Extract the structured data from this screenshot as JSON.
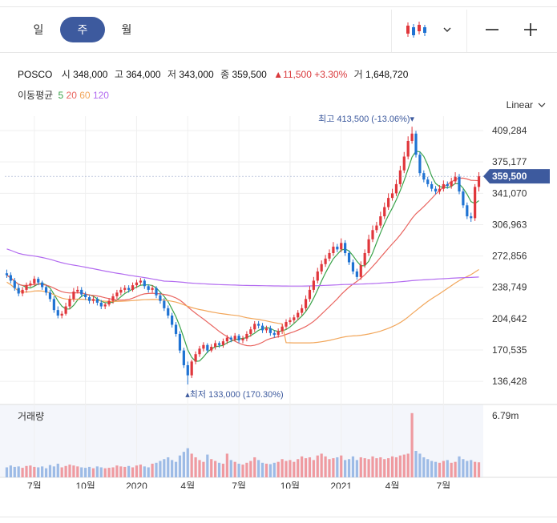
{
  "tabs": [
    {
      "label": "일",
      "active": false
    },
    {
      "label": "주",
      "active": true
    },
    {
      "label": "월",
      "active": false
    }
  ],
  "controls": {
    "chart_type_icon": "candlestick-icon",
    "dropdown_icon": "chevron-down-icon",
    "zoom_out_icon": "minus-icon",
    "zoom_in_icon": "plus-icon"
  },
  "summary": {
    "name": "POSCO",
    "open_label": "시",
    "open": "348,000",
    "high_label": "고",
    "high": "364,000",
    "low_label": "저",
    "low": "343,000",
    "close_label": "종",
    "close": "359,500",
    "change": "11,500",
    "change_pct": "+3.30%",
    "volume_label": "거",
    "volume": "1,648,720"
  },
  "moving_average": {
    "label": "이동평균",
    "periods": [
      {
        "label": "5",
        "color": "#3aa34a"
      },
      {
        "label": "20",
        "color": "#e9645f"
      },
      {
        "label": "60",
        "color": "#f2a65a"
      },
      {
        "label": "120",
        "color": "#b36cf0"
      }
    ]
  },
  "scale_mode": "Linear",
  "colors": {
    "up": "#e0363b",
    "down": "#1f73d3",
    "accent": "#3d5a9e",
    "volume_up": "#ef9aa0",
    "volume_down": "#9dbbe6"
  },
  "chart_data": {
    "type": "candlestick",
    "ylim": [
      120000,
      425000
    ],
    "y_ticks": [
      "409,284",
      "375,177",
      "341,070",
      "306,963",
      "272,856",
      "238,749",
      "204,642",
      "170,535",
      "136,428"
    ],
    "y_tick_values": [
      409284,
      375177,
      341070,
      306963,
      272856,
      238749,
      204642,
      170535,
      136428
    ],
    "x_ticks": [
      "7월",
      "10월",
      "2020",
      "4월",
      "7월",
      "10월",
      "2021",
      "4월",
      "7월"
    ],
    "x_tick_index": [
      7,
      20,
      33,
      46,
      59,
      72,
      85,
      98,
      111
    ],
    "last_price_label": "359,500",
    "last_price": 359500,
    "max_annotation": {
      "label": "최고",
      "value": "413,500",
      "pct": "(-13.06%)",
      "index": 103,
      "price": 413500
    },
    "min_annotation": {
      "label": "최저",
      "value": "133,000",
      "pct": "(170.30%)",
      "index": 46,
      "price": 133000
    },
    "volume_label": "거래량",
    "volume_tick": "6.79m",
    "volume_tick_value": 6790000,
    "volume_max": 8000000,
    "close": [
      252000,
      246000,
      238000,
      232000,
      236000,
      241000,
      243000,
      248000,
      244000,
      239000,
      233000,
      226000,
      214000,
      208000,
      210000,
      218000,
      226000,
      234000,
      236000,
      231000,
      228000,
      224000,
      226000,
      222000,
      218000,
      220000,
      224000,
      229000,
      233000,
      236000,
      238000,
      236000,
      241000,
      244000,
      246000,
      240000,
      236000,
      238000,
      230000,
      224000,
      216000,
      208000,
      198000,
      188000,
      170000,
      154000,
      143000,
      158000,
      166000,
      172000,
      176000,
      170000,
      174000,
      178000,
      176000,
      180000,
      184000,
      182000,
      186000,
      181000,
      183000,
      188000,
      193000,
      199000,
      197000,
      192000,
      194000,
      189000,
      187000,
      191000,
      196000,
      201000,
      203000,
      206000,
      211000,
      216000,
      226000,
      236000,
      246000,
      256000,
      264000,
      270000,
      276000,
      283000,
      280000,
      287000,
      276000,
      266000,
      256000,
      250000,
      263000,
      276000,
      291000,
      301000,
      306000,
      316000,
      326000,
      336000,
      341000,
      351000,
      366000,
      381000,
      398000,
      406000,
      383000,
      363000,
      356000,
      351000,
      346000,
      343000,
      346000,
      351000,
      349000,
      354000,
      359000,
      343000,
      328000,
      316000,
      314000,
      348000,
      359500
    ],
    "open": [
      254000,
      252000,
      246000,
      238000,
      232000,
      236000,
      241000,
      243000,
      248000,
      244000,
      239000,
      233000,
      226000,
      214000,
      208000,
      210000,
      218000,
      226000,
      234000,
      236000,
      231000,
      228000,
      224000,
      226000,
      222000,
      218000,
      220000,
      224000,
      229000,
      233000,
      236000,
      238000,
      236000,
      241000,
      244000,
      246000,
      240000,
      236000,
      238000,
      230000,
      224000,
      216000,
      208000,
      198000,
      188000,
      170000,
      154000,
      143000,
      158000,
      166000,
      172000,
      176000,
      170000,
      174000,
      178000,
      176000,
      180000,
      184000,
      182000,
      186000,
      181000,
      183000,
      188000,
      193000,
      199000,
      197000,
      192000,
      194000,
      189000,
      187000,
      191000,
      196000,
      201000,
      203000,
      206000,
      211000,
      216000,
      226000,
      236000,
      246000,
      256000,
      264000,
      270000,
      276000,
      283000,
      280000,
      287000,
      276000,
      266000,
      256000,
      250000,
      263000,
      276000,
      291000,
      301000,
      306000,
      316000,
      326000,
      336000,
      341000,
      351000,
      366000,
      381000,
      398000,
      406000,
      383000,
      363000,
      356000,
      351000,
      346000,
      343000,
      346000,
      351000,
      349000,
      354000,
      359000,
      343000,
      328000,
      316000,
      314000,
      348000
    ],
    "high": [
      258000,
      255000,
      249000,
      242000,
      239000,
      244000,
      246000,
      251000,
      250000,
      246000,
      241000,
      236000,
      229000,
      218000,
      213000,
      222000,
      230000,
      238000,
      240000,
      239000,
      234000,
      230000,
      229000,
      228000,
      225000,
      222000,
      227000,
      232000,
      236000,
      239000,
      241000,
      241000,
      244000,
      247000,
      249000,
      248000,
      242000,
      241000,
      240000,
      233000,
      227000,
      219000,
      211000,
      201000,
      191000,
      173000,
      158000,
      160000,
      169000,
      175000,
      179000,
      178000,
      177000,
      181000,
      180000,
      183000,
      187000,
      186000,
      189000,
      188000,
      186000,
      191000,
      196000,
      202000,
      202000,
      200000,
      197000,
      197000,
      192000,
      194000,
      199000,
      204000,
      206000,
      209000,
      214000,
      220000,
      230000,
      240000,
      250000,
      260000,
      268000,
      274000,
      280000,
      288000,
      286000,
      292000,
      290000,
      279000,
      269000,
      259000,
      267000,
      280000,
      296000,
      306000,
      310000,
      321000,
      331000,
      341000,
      346000,
      356000,
      371000,
      386000,
      403000,
      413500,
      409000,
      386000,
      366000,
      359000,
      354000,
      349000,
      350000,
      355000,
      354000,
      358000,
      364000,
      362000,
      346000,
      331000,
      320000,
      351000,
      364000
    ],
    "low": [
      249000,
      243000,
      235000,
      229000,
      229000,
      233000,
      239000,
      240000,
      241000,
      236000,
      230000,
      223000,
      211000,
      205000,
      205000,
      208000,
      215000,
      223000,
      232000,
      228000,
      225000,
      221000,
      221000,
      219000,
      215000,
      215000,
      218000,
      221000,
      226000,
      230000,
      233000,
      233000,
      234000,
      238000,
      241000,
      237000,
      233000,
      233000,
      227000,
      221000,
      213000,
      205000,
      195000,
      185000,
      167000,
      151000,
      133000,
      140000,
      155000,
      163000,
      169000,
      167000,
      168000,
      171000,
      173000,
      173000,
      177000,
      179000,
      180000,
      178000,
      178000,
      180000,
      185000,
      190000,
      194000,
      189000,
      189000,
      186000,
      184000,
      184000,
      188000,
      193000,
      198000,
      200000,
      203000,
      208000,
      213000,
      223000,
      233000,
      243000,
      253000,
      261000,
      267000,
      273000,
      277000,
      277000,
      273000,
      263000,
      253000,
      247000,
      247000,
      260000,
      273000,
      288000,
      298000,
      303000,
      313000,
      323000,
      333000,
      338000,
      348000,
      363000,
      378000,
      395000,
      380000,
      360000,
      353000,
      348000,
      343000,
      340000,
      340000,
      343000,
      346000,
      346000,
      351000,
      340000,
      325000,
      313000,
      310000,
      311000,
      343000
    ],
    "volume": [
      1100000,
      1300000,
      1150000,
      1200000,
      1050000,
      1250000,
      1300000,
      1150000,
      1100000,
      1200000,
      1000000,
      1350000,
      1200000,
      1500000,
      1100000,
      1250000,
      1400000,
      1300000,
      1200000,
      1100000,
      1050000,
      1150000,
      1000000,
      1200000,
      1100000,
      1000000,
      1050000,
      1100000,
      1300000,
      1200000,
      1150000,
      1250000,
      1100000,
      1300000,
      1400000,
      1200000,
      1100000,
      1500000,
      1600000,
      1800000,
      2000000,
      2200000,
      1900000,
      1700000,
      2400000,
      2800000,
      3200000,
      2600000,
      2200000,
      1900000,
      1700000,
      2500000,
      2000000,
      1800000,
      1600000,
      1500000,
      2600000,
      1900000,
      1700000,
      1500000,
      1400000,
      1600000,
      1800000,
      2200000,
      1900000,
      1600000,
      1500000,
      1450000,
      1600000,
      1700000,
      2000000,
      1800000,
      1900000,
      1700000,
      2000000,
      2300000,
      2100000,
      2200000,
      1900000,
      2400000,
      2600000,
      2300000,
      2000000,
      2100000,
      2200000,
      2400000,
      1900000,
      2000000,
      2300000,
      1900000,
      2200000,
      2100000,
      2000000,
      2300000,
      2100000,
      2200000,
      2000000,
      2100000,
      2300000,
      2200000,
      2400000,
      2500000,
      2600000,
      7050000,
      2900000,
      2600000,
      2200000,
      2000000,
      1800000,
      1700000,
      1600000,
      1800000,
      1900000,
      1600000,
      1700000,
      2300000,
      2000000,
      1800000,
      1900000,
      1700000,
      1650000
    ]
  }
}
